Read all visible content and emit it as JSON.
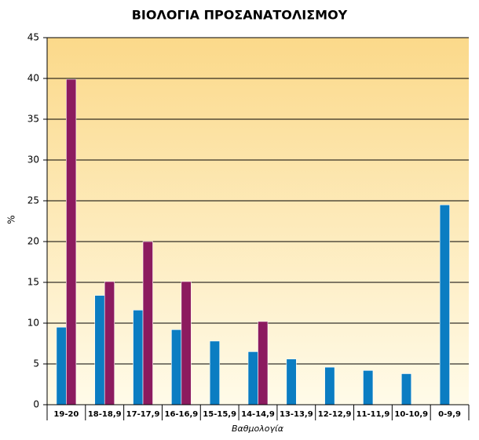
{
  "chart_data": {
    "type": "bar",
    "title": "ΒΙΟΛΟΓΙΑ ΠΡΟΣΑΝΑΤΟΛΙΣΜΟΥ",
    "x_label": "Βαθμολογία",
    "y_label": "%",
    "categories": [
      "19-20",
      "18-18,9",
      "17-17,9",
      "16-16,9",
      "15-15,9",
      "14-14,9",
      "13-13,9",
      "12-12,9",
      "11-11,9",
      "10-10,9",
      "0-9,9"
    ],
    "series": [
      {
        "color": "#0b7dc2",
        "values": [
          9.5,
          13.4,
          11.6,
          9.2,
          7.8,
          6.5,
          5.6,
          4.6,
          4.2,
          3.8,
          24.5
        ]
      },
      {
        "color": "#8c1b5f",
        "values": [
          39.9,
          15.1,
          20.0,
          15.1,
          null,
          10.2,
          null,
          null,
          null,
          null,
          null
        ]
      }
    ],
    "ylim": [
      0,
      45
    ],
    "yticks": [
      0,
      5,
      10,
      15,
      20,
      25,
      30,
      35,
      40,
      45
    ],
    "grid": true
  }
}
